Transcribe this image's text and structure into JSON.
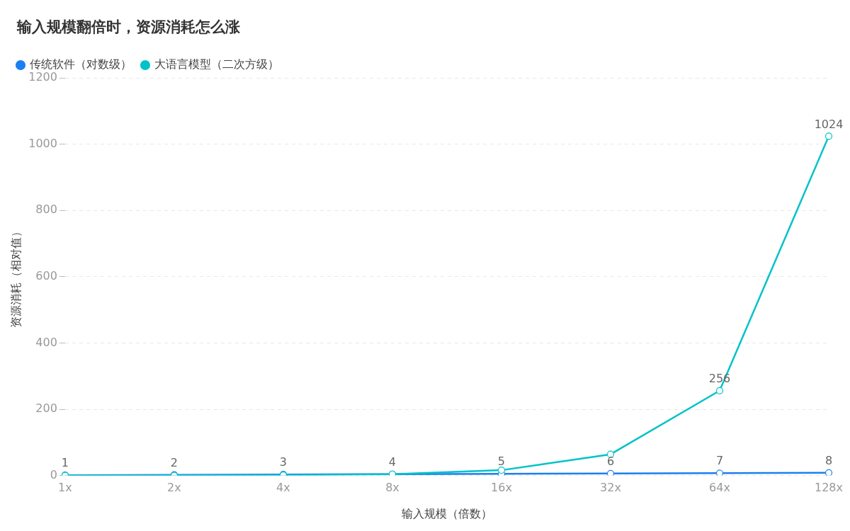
{
  "chart_data": {
    "type": "line",
    "title": "输入规模翻倍时，资源消耗怎么涨",
    "xlabel": "输入规模（倍数）",
    "ylabel": "资源消耗（相对值）",
    "categories": [
      "1x",
      "2x",
      "4x",
      "8x",
      "16x",
      "32x",
      "64x",
      "128x"
    ],
    "series": [
      {
        "name": "传统软件（对数级）",
        "color": "#1a7ff0",
        "values": [
          1,
          2,
          3,
          4,
          5,
          6,
          7,
          8
        ],
        "value_labels": [
          "1",
          "2",
          "3",
          "4",
          "5",
          "6",
          "7",
          "8"
        ]
      },
      {
        "name": "大语言模型（二次方级）",
        "color": "#00c3c8",
        "values": [
          0,
          0,
          1,
          4,
          16,
          64,
          256,
          1024
        ],
        "value_labels": [
          null,
          null,
          null,
          null,
          null,
          null,
          "256",
          "1024"
        ]
      }
    ],
    "ylim": [
      0,
      1200
    ],
    "yticks": [
      0,
      200,
      400,
      600,
      800,
      1000,
      1200
    ],
    "grid": "y",
    "legend": "top left",
    "marker": "circle",
    "line_style": "solid"
  }
}
